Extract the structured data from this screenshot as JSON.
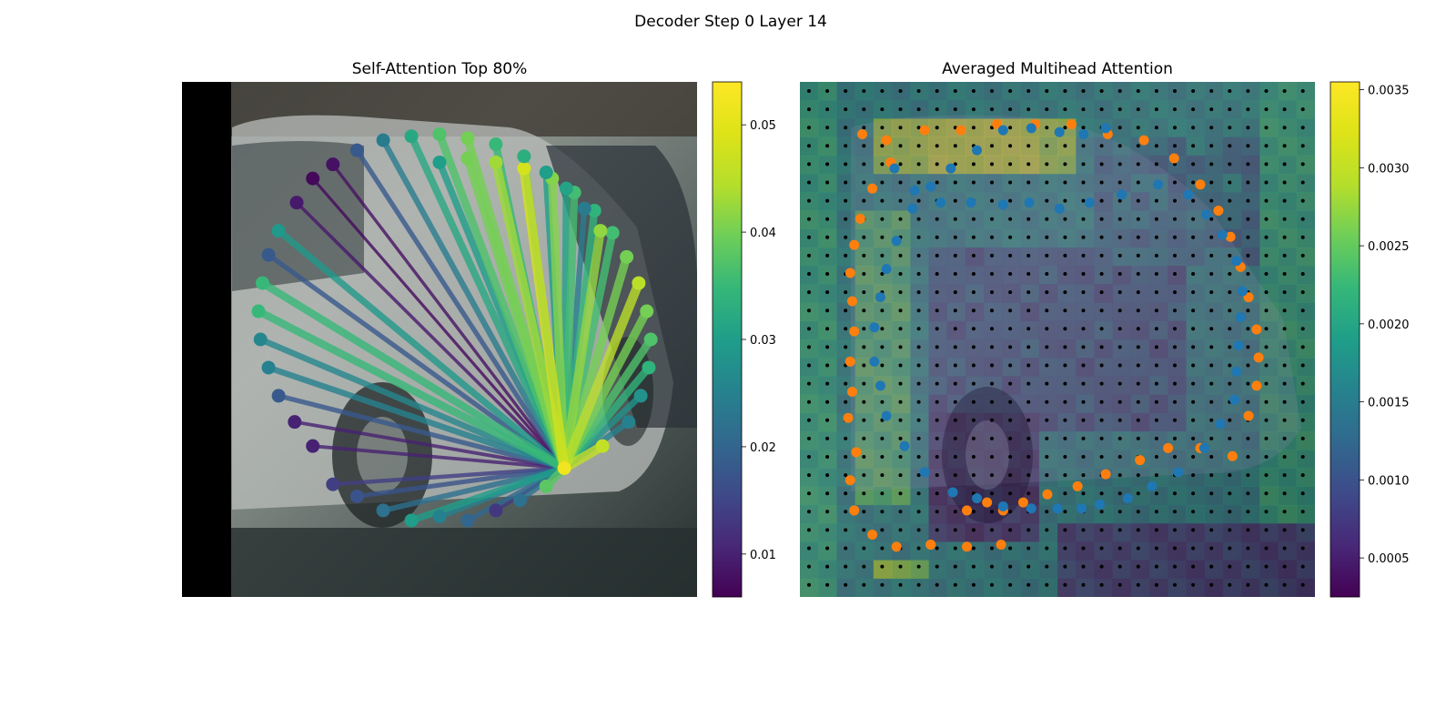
{
  "figure": {
    "title": "Decoder Step 0 Layer 14"
  },
  "chart_data": [
    {
      "type": "scatter",
      "title": "Self-Attention Top 80%",
      "xlim": [
        0,
        256
      ],
      "ylim": [
        0,
        256
      ],
      "colorbar": {
        "ticks": [
          0.01,
          0.02,
          0.03,
          0.04,
          0.05
        ],
        "range": [
          0.006,
          0.054
        ],
        "colormap": "viridis"
      },
      "query_point": {
        "x": 190,
        "y": 64,
        "value": 0.052
      },
      "points": [
        {
          "x": 128,
          "y": 216,
          "v": 0.03
        },
        {
          "x": 142,
          "y": 218,
          "v": 0.04
        },
        {
          "x": 156,
          "y": 216,
          "v": 0.043
        },
        {
          "x": 170,
          "y": 213,
          "v": 0.048
        },
        {
          "x": 184,
          "y": 208,
          "v": 0.041
        },
        {
          "x": 195,
          "y": 201,
          "v": 0.036
        },
        {
          "x": 205,
          "y": 192,
          "v": 0.034
        },
        {
          "x": 214,
          "y": 181,
          "v": 0.036
        },
        {
          "x": 221,
          "y": 169,
          "v": 0.04
        },
        {
          "x": 227,
          "y": 156,
          "v": 0.045
        },
        {
          "x": 231,
          "y": 142,
          "v": 0.04
        },
        {
          "x": 233,
          "y": 128,
          "v": 0.037
        },
        {
          "x": 232,
          "y": 114,
          "v": 0.034
        },
        {
          "x": 228,
          "y": 100,
          "v": 0.028
        },
        {
          "x": 222,
          "y": 87,
          "v": 0.025
        },
        {
          "x": 209,
          "y": 75,
          "v": 0.046
        },
        {
          "x": 190,
          "y": 64,
          "v": 0.052
        },
        {
          "x": 181,
          "y": 55,
          "v": 0.038
        },
        {
          "x": 168,
          "y": 48,
          "v": 0.022
        },
        {
          "x": 156,
          "y": 43,
          "v": 0.013
        },
        {
          "x": 142,
          "y": 38,
          "v": 0.02
        },
        {
          "x": 128,
          "y": 40,
          "v": 0.025
        },
        {
          "x": 114,
          "y": 38,
          "v": 0.03
        },
        {
          "x": 100,
          "y": 43,
          "v": 0.022
        },
        {
          "x": 87,
          "y": 50,
          "v": 0.017
        },
        {
          "x": 75,
          "y": 56,
          "v": 0.014
        },
        {
          "x": 65,
          "y": 75,
          "v": 0.01
        },
        {
          "x": 56,
          "y": 87,
          "v": 0.01
        },
        {
          "x": 48,
          "y": 100,
          "v": 0.018
        },
        {
          "x": 43,
          "y": 114,
          "v": 0.025
        },
        {
          "x": 39,
          "y": 128,
          "v": 0.026
        },
        {
          "x": 38,
          "y": 142,
          "v": 0.035
        },
        {
          "x": 40,
          "y": 156,
          "v": 0.035
        },
        {
          "x": 43,
          "y": 170,
          "v": 0.018
        },
        {
          "x": 48,
          "y": 182,
          "v": 0.029
        },
        {
          "x": 57,
          "y": 196,
          "v": 0.009
        },
        {
          "x": 65,
          "y": 208,
          "v": 0.007
        },
        {
          "x": 75,
          "y": 215,
          "v": 0.008
        },
        {
          "x": 87,
          "y": 222,
          "v": 0.018
        },
        {
          "x": 100,
          "y": 227,
          "v": 0.024
        },
        {
          "x": 114,
          "y": 229,
          "v": 0.032
        },
        {
          "x": 128,
          "y": 230,
          "v": 0.037
        },
        {
          "x": 142,
          "y": 228,
          "v": 0.04
        },
        {
          "x": 156,
          "y": 225,
          "v": 0.035
        },
        {
          "x": 170,
          "y": 219,
          "v": 0.033
        },
        {
          "x": 181,
          "y": 211,
          "v": 0.03
        },
        {
          "x": 191,
          "y": 203,
          "v": 0.031
        },
        {
          "x": 200,
          "y": 193,
          "v": 0.024
        },
        {
          "x": 208,
          "y": 182,
          "v": 0.042
        }
      ]
    },
    {
      "type": "heatmap",
      "title": "Averaged Multihead Attention",
      "xlim": [
        0,
        256
      ],
      "ylim": [
        0,
        256
      ],
      "colorbar": {
        "ticks": [
          0.0005,
          0.001,
          0.0015,
          0.002,
          0.0025,
          0.003,
          0.0035
        ],
        "range": [
          0.00025,
          0.00355
        ],
        "colormap": "viridis"
      },
      "grid_size": [
        28,
        28
      ],
      "series": [
        {
          "color": "#ff7f0e",
          "points": [
            {
              "x": 31,
              "y": 230
            },
            {
              "x": 43,
              "y": 227
            },
            {
              "x": 62,
              "y": 232
            },
            {
              "x": 80,
              "y": 232
            },
            {
              "x": 98,
              "y": 235
            },
            {
              "x": 117,
              "y": 235
            },
            {
              "x": 135,
              "y": 235
            },
            {
              "x": 153,
              "y": 230
            },
            {
              "x": 171,
              "y": 227
            },
            {
              "x": 186,
              "y": 218
            },
            {
              "x": 199,
              "y": 205
            },
            {
              "x": 208,
              "y": 192
            },
            {
              "x": 214,
              "y": 179
            },
            {
              "x": 219,
              "y": 164
            },
            {
              "x": 223,
              "y": 149
            },
            {
              "x": 227,
              "y": 133
            },
            {
              "x": 228,
              "y": 119
            },
            {
              "x": 227,
              "y": 105
            },
            {
              "x": 223,
              "y": 90
            },
            {
              "x": 215,
              "y": 70
            },
            {
              "x": 199,
              "y": 74
            },
            {
              "x": 183,
              "y": 74
            },
            {
              "x": 169,
              "y": 68
            },
            {
              "x": 152,
              "y": 61
            },
            {
              "x": 138,
              "y": 55
            },
            {
              "x": 123,
              "y": 51
            },
            {
              "x": 111,
              "y": 47
            },
            {
              "x": 101,
              "y": 43
            },
            {
              "x": 93,
              "y": 47
            },
            {
              "x": 83,
              "y": 43
            },
            {
              "x": 65,
              "y": 26
            },
            {
              "x": 83,
              "y": 25
            },
            {
              "x": 100,
              "y": 26
            },
            {
              "x": 65,
              "y": 26
            },
            {
              "x": 48,
              "y": 25
            },
            {
              "x": 36,
              "y": 31
            },
            {
              "x": 27,
              "y": 43
            },
            {
              "x": 25,
              "y": 58
            },
            {
              "x": 28,
              "y": 72
            },
            {
              "x": 24,
              "y": 89
            },
            {
              "x": 26,
              "y": 102
            },
            {
              "x": 25,
              "y": 117
            },
            {
              "x": 27,
              "y": 132
            },
            {
              "x": 26,
              "y": 147
            },
            {
              "x": 25,
              "y": 161
            },
            {
              "x": 27,
              "y": 175
            },
            {
              "x": 30,
              "y": 188
            },
            {
              "x": 36,
              "y": 203
            },
            {
              "x": 45,
              "y": 216
            }
          ]
        },
        {
          "color": "#1f77b4",
          "points": [
            {
              "x": 47,
              "y": 213
            },
            {
              "x": 57,
              "y": 202
            },
            {
              "x": 70,
              "y": 196
            },
            {
              "x": 85,
              "y": 196
            },
            {
              "x": 101,
              "y": 195
            },
            {
              "x": 114,
              "y": 196
            },
            {
              "x": 129,
              "y": 193
            },
            {
              "x": 144,
              "y": 196
            },
            {
              "x": 160,
              "y": 200
            },
            {
              "x": 178,
              "y": 205
            },
            {
              "x": 193,
              "y": 200
            },
            {
              "x": 202,
              "y": 190
            },
            {
              "x": 210,
              "y": 180
            },
            {
              "x": 217,
              "y": 167
            },
            {
              "x": 220,
              "y": 152
            },
            {
              "x": 219,
              "y": 139
            },
            {
              "x": 218,
              "y": 125
            },
            {
              "x": 217,
              "y": 112
            },
            {
              "x": 216,
              "y": 98
            },
            {
              "x": 209,
              "y": 86
            },
            {
              "x": 201,
              "y": 74
            },
            {
              "x": 188,
              "y": 62
            },
            {
              "x": 175,
              "y": 55
            },
            {
              "x": 163,
              "y": 49
            },
            {
              "x": 149,
              "y": 46
            },
            {
              "x": 140,
              "y": 44
            },
            {
              "x": 128,
              "y": 44
            },
            {
              "x": 115,
              "y": 44
            },
            {
              "x": 101,
              "y": 45
            },
            {
              "x": 88,
              "y": 49
            },
            {
              "x": 76,
              "y": 52
            },
            {
              "x": 62,
              "y": 62
            },
            {
              "x": 52,
              "y": 75
            },
            {
              "x": 43,
              "y": 90
            },
            {
              "x": 40,
              "y": 105
            },
            {
              "x": 37,
              "y": 117
            },
            {
              "x": 37,
              "y": 134
            },
            {
              "x": 40,
              "y": 149
            },
            {
              "x": 43,
              "y": 163
            },
            {
              "x": 48,
              "y": 177
            },
            {
              "x": 56,
              "y": 193
            },
            {
              "x": 65,
              "y": 204
            },
            {
              "x": 75,
              "y": 213
            },
            {
              "x": 88,
              "y": 222
            },
            {
              "x": 101,
              "y": 232
            },
            {
              "x": 115,
              "y": 233
            },
            {
              "x": 129,
              "y": 231
            },
            {
              "x": 141,
              "y": 230
            },
            {
              "x": 152,
              "y": 233
            }
          ]
        }
      ]
    }
  ]
}
